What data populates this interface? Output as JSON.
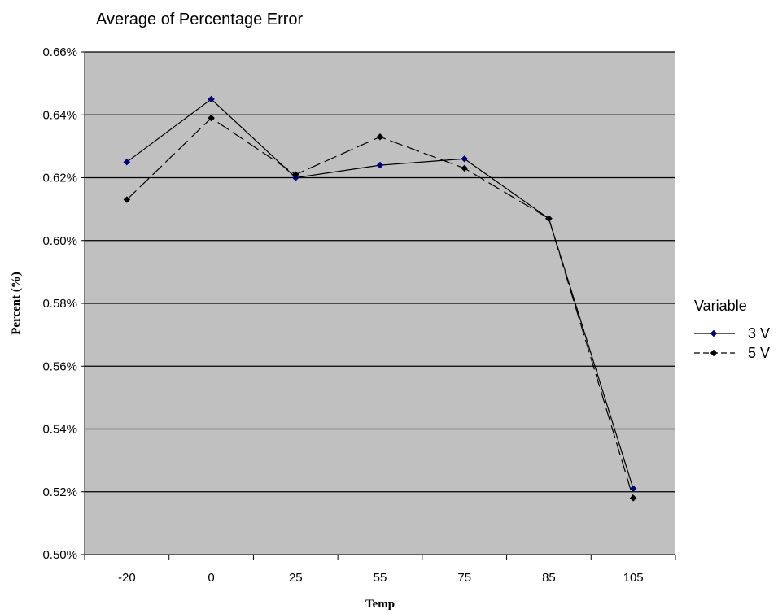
{
  "chart_data": {
    "type": "line",
    "title": "Average of Percentage Error",
    "xlabel": "Temp",
    "ylabel": "Percent (%)",
    "categories": [
      "-20",
      "0",
      "25",
      "55",
      "75",
      "85",
      "105"
    ],
    "ylim": [
      0.5,
      0.66
    ],
    "ytick_labels": [
      "0.50%",
      "0.52%",
      "0.54%",
      "0.56%",
      "0.58%",
      "0.60%",
      "0.62%",
      "0.64%",
      "0.66%"
    ],
    "grid": true,
    "plot_background": "#c0c0c0",
    "legend": {
      "title": "Variable",
      "placement": "right"
    },
    "series": [
      {
        "name": "3 V",
        "line_style": "solid",
        "color": "#000080",
        "values": [
          0.625,
          0.645,
          0.62,
          0.624,
          0.626,
          0.607,
          0.521
        ]
      },
      {
        "name": "5 V",
        "line_style": "dashed",
        "color": "#000000",
        "values": [
          0.613,
          0.639,
          0.621,
          0.633,
          0.623,
          0.607,
          0.518
        ]
      }
    ]
  }
}
